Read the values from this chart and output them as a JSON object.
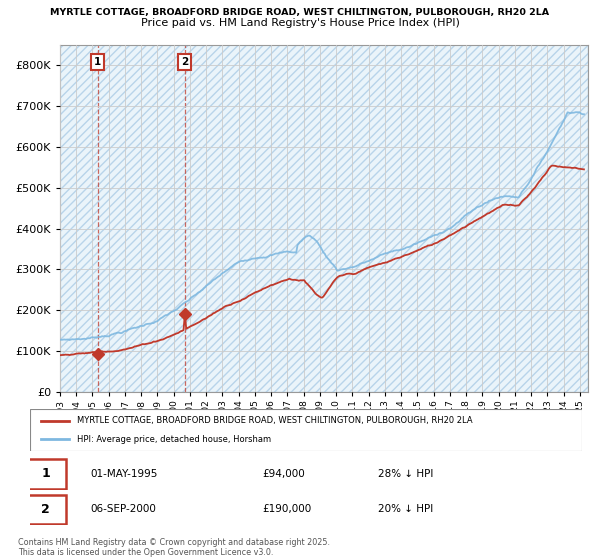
{
  "title_line1": "MYRTLE COTTAGE, BROADFORD BRIDGE ROAD, WEST CHILTINGTON, PULBOROUGH, RH20 2LA",
  "title_line2": "Price paid vs. HM Land Registry's House Price Index (HPI)",
  "ylim": [
    0,
    850000
  ],
  "yticks": [
    0,
    100000,
    200000,
    300000,
    400000,
    500000,
    600000,
    700000,
    800000
  ],
  "hpi_color": "#7eb8e0",
  "price_color": "#c0392b",
  "sale1_year": 1995.33,
  "sale1_price": 94000,
  "sale2_year": 2000.67,
  "sale2_price": 190000,
  "legend_price_label": "MYRTLE COTTAGE, BROADFORD BRIDGE ROAD, WEST CHILTINGTON, PULBOROUGH, RH20 2LA",
  "legend_hpi_label": "HPI: Average price, detached house, Horsham",
  "footnote": "Contains HM Land Registry data © Crown copyright and database right 2025.\nThis data is licensed under the Open Government Licence v3.0.",
  "grid_color": "#cccccc",
  "hpi_yearly": [
    128000,
    130000,
    133000,
    142000,
    152000,
    163000,
    178000,
    200000,
    225000,
    255000,
    285000,
    310000,
    325000,
    335000,
    340000,
    335000,
    310000,
    295000,
    305000,
    320000,
    335000,
    345000,
    360000,
    375000,
    400000,
    430000,
    455000,
    470000,
    470000,
    530000,
    600000,
    680000,
    680000
  ],
  "price_yearly": [
    90000,
    92000,
    94500,
    100000,
    107000,
    116000,
    128000,
    144000,
    163000,
    185000,
    210000,
    230000,
    250000,
    270000,
    285000,
    280000,
    265000,
    285000,
    290000,
    305000,
    315000,
    330000,
    345000,
    360000,
    385000,
    410000,
    435000,
    455000,
    455000,
    500000,
    555000,
    550000,
    545000
  ]
}
